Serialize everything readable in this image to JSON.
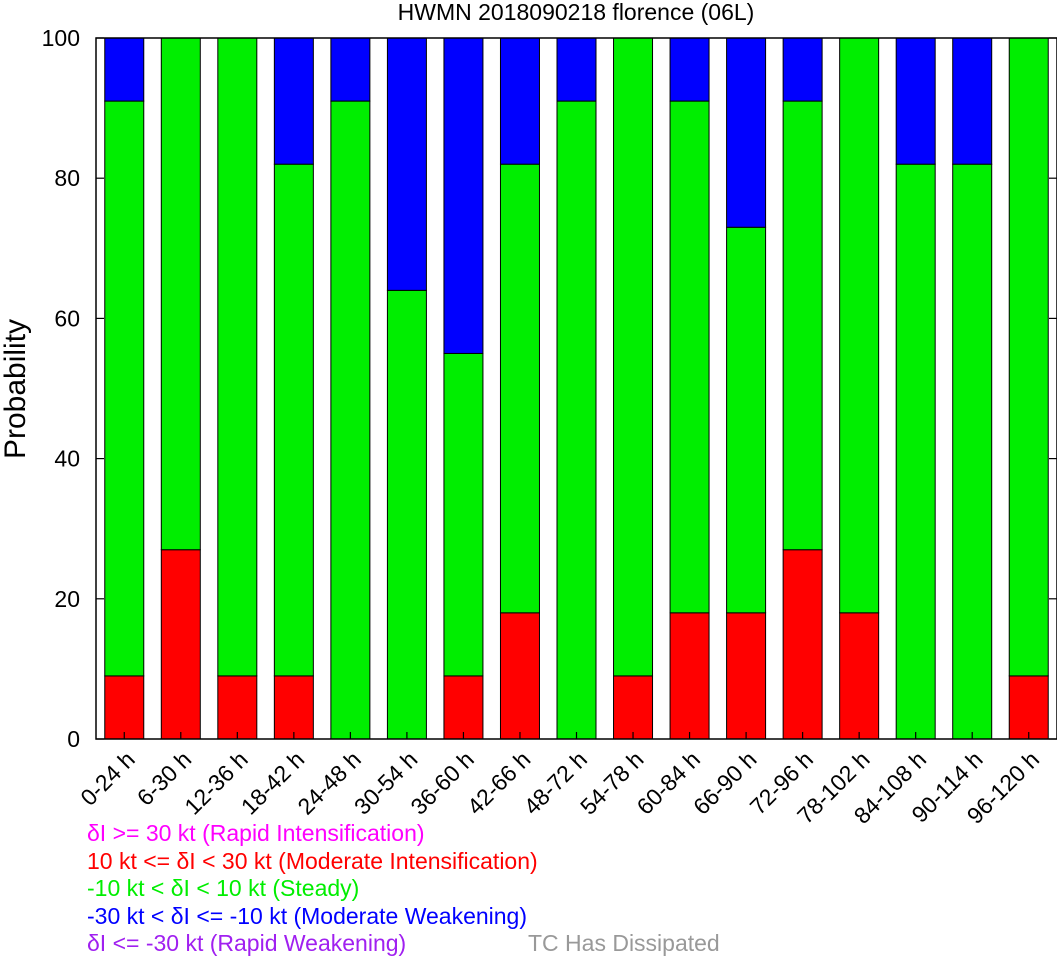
{
  "chart_data": {
    "type": "bar",
    "stacked": true,
    "title": "HWMN 2018090218 florence (06L)",
    "ylabel": "Probability",
    "xlabel": "",
    "ylim": [
      0,
      100
    ],
    "yticks": [
      "0",
      "20",
      "40",
      "60",
      "80",
      "100"
    ],
    "categories": [
      "0-24 h",
      "6-30 h",
      "12-36 h",
      "18-42 h",
      "24-48 h",
      "30-54 h",
      "36-60 h",
      "42-66 h",
      "48-72 h",
      "54-78 h",
      "60-84 h",
      "66-90 h",
      "72-96 h",
      "78-102 h",
      "84-108 h",
      "90-114 h",
      "96-120 h"
    ],
    "series": [
      {
        "key": "ri",
        "color": "#ff00ff",
        "values": [
          0,
          0,
          0,
          0,
          0,
          0,
          0,
          0,
          0,
          0,
          0,
          0,
          0,
          0,
          0,
          0,
          0
        ]
      },
      {
        "key": "mi",
        "color": "#ff0000",
        "values": [
          9,
          27,
          9,
          9,
          0,
          0,
          9,
          18,
          0,
          9,
          18,
          18,
          27,
          18,
          0,
          0,
          9
        ]
      },
      {
        "key": "steady",
        "color": "#00ee00",
        "values": [
          82,
          73,
          91,
          73,
          91,
          64,
          46,
          64,
          91,
          91,
          73,
          55,
          64,
          82,
          82,
          82,
          91
        ]
      },
      {
        "key": "mw",
        "color": "#0000ff",
        "values": [
          9,
          0,
          0,
          18,
          9,
          36,
          45,
          18,
          9,
          0,
          9,
          27,
          9,
          0,
          18,
          18,
          0
        ]
      },
      {
        "key": "rw",
        "color": "#a020f0",
        "values": [
          0,
          0,
          0,
          0,
          0,
          0,
          0,
          0,
          0,
          0,
          0,
          0,
          0,
          0,
          0,
          0,
          0
        ]
      }
    ],
    "grid": false,
    "legend_position": "bottom-left"
  },
  "legend": {
    "ri": {
      "text": "δI >= 30 kt (Rapid Intensification)",
      "color": "#ff00ff"
    },
    "mi": {
      "text": "10 kt <= δI < 30 kt (Moderate Intensification)",
      "color": "#ff0000"
    },
    "steady": {
      "text": "-10 kt < δI < 10 kt (Steady)",
      "color": "#00ee00"
    },
    "mw": {
      "text": "-30 kt < δI <= -10 kt (Moderate Weakening)",
      "color": "#0000ff"
    },
    "rw": {
      "text": "δI <= -30 kt (Rapid Weakening)",
      "color": "#a020f0"
    },
    "dissipated": {
      "text": "TC Has Dissipated",
      "color": "#999999"
    }
  }
}
